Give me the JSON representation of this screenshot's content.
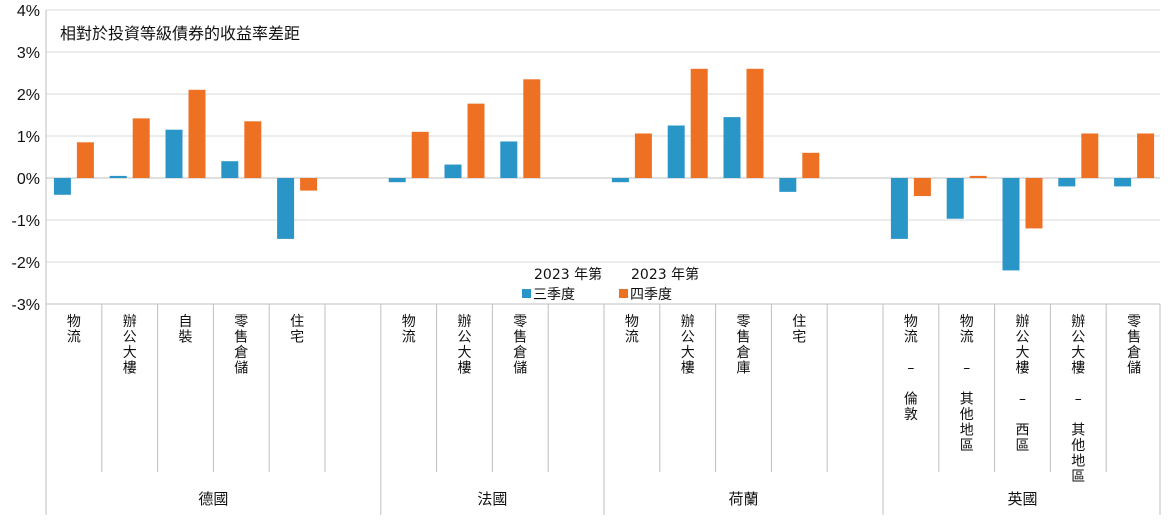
{
  "chart_data": {
    "type": "bar",
    "title": "相對於投資等級債券的收益率差距",
    "ylim": [
      -3,
      4
    ],
    "y_ticks": [
      "-3%",
      "-2%",
      "-1%",
      "0%",
      "1%",
      "2%",
      "3%",
      "4%"
    ],
    "grid": true,
    "legend_placement": "bottom-center",
    "colors": {
      "q3": "#2a96c8",
      "q4": "#ee7123"
    },
    "groups": [
      {
        "name": "德國",
        "categories": [
          "物流",
          "辦公大樓",
          "自裝",
          "零售倉儲",
          "住宅"
        ]
      },
      {
        "name": "法國",
        "categories": [
          "物流",
          "辦公大樓",
          "零售倉儲"
        ]
      },
      {
        "name": "荷蘭",
        "categories": [
          "物流",
          "辦公大樓",
          "零售倉庫",
          "住宅"
        ]
      },
      {
        "name": "英國",
        "categories": [
          "物流 – 倫敦",
          "物流 – 其他地區",
          "辦公大樓 – 西區",
          "辦公大樓 – 其他地區",
          "零售倉儲"
        ]
      }
    ],
    "series": [
      {
        "name": "2023 年第三季度",
        "legend_line1": "2023 年第",
        "legend_line2": "三季度",
        "values": [
          -0.4,
          0.05,
          1.15,
          0.4,
          -1.45,
          -0.1,
          0.32,
          0.87,
          -0.1,
          1.25,
          1.45,
          -0.33,
          -1.45,
          -0.97,
          -2.2,
          -0.2,
          -0.2
        ]
      },
      {
        "name": "2023 年第四季度",
        "legend_line1": "2023 年第",
        "legend_line2": "四季度",
        "values": [
          0.85,
          1.42,
          2.1,
          1.35,
          -0.3,
          1.1,
          1.77,
          2.35,
          1.06,
          2.6,
          2.6,
          0.6,
          -0.43,
          0.05,
          -1.2,
          1.06,
          1.06
        ]
      }
    ]
  }
}
